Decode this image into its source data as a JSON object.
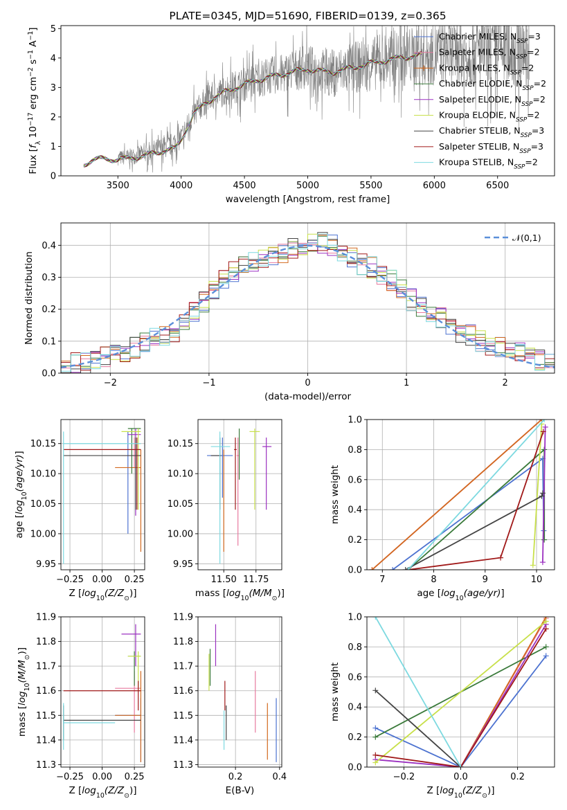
{
  "chart_data": [
    {
      "id": "spectrum",
      "type": "line",
      "title": "PLATE=0345, MJD=51690, FIBERID=0139, z=0.365",
      "xlabel": "wavelength [Angstrom, rest frame]",
      "ylabel": "Flux [$f_\\lambda 10^{-17}$ erg cm$^{-2}$ s$^{-1}$ A$^{-1}$]",
      "xlim": [
        3050,
        6950
      ],
      "ylim": [
        0,
        5.1
      ],
      "xticks": [
        3500,
        4000,
        4500,
        5000,
        5500,
        6000,
        6500
      ],
      "yticks": [
        0,
        1,
        2,
        3,
        4,
        5
      ],
      "observed_flux": {
        "color": "#808080",
        "x": [
          3500,
          3600,
          3700,
          3800,
          3900,
          4000,
          4100,
          4200,
          4300,
          4400,
          4500,
          4600,
          4700,
          4800,
          4900,
          5000,
          5100,
          5200,
          5300,
          5400,
          5500,
          5600,
          5700,
          5800,
          5900,
          6000,
          6100,
          6200,
          6300,
          6400,
          6500,
          6600,
          6750
        ],
        "y": [
          0.6,
          0.65,
          0.75,
          0.9,
          1.0,
          1.3,
          2.1,
          2.6,
          2.8,
          3.0,
          3.1,
          3.3,
          3.4,
          3.45,
          3.6,
          3.7,
          3.55,
          3.5,
          3.6,
          3.7,
          3.8,
          3.9,
          4.0,
          4.05,
          4.1,
          4.15,
          4.2,
          4.2,
          4.2,
          4.25,
          4.3,
          4.3,
          4.3
        ]
      },
      "model_flux": {
        "x": [
          3230,
          3300,
          3400,
          3500,
          3600,
          3700,
          3800,
          3900,
          3950,
          4000,
          4100,
          4200,
          4300,
          4400,
          4500,
          4600,
          4700,
          4800,
          4900,
          5000,
          5100,
          5200,
          5300,
          5400,
          5500,
          5600,
          5700,
          5800,
          5900
        ],
        "y": [
          0.38,
          0.55,
          0.58,
          0.55,
          0.6,
          0.68,
          0.78,
          0.9,
          0.9,
          1.22,
          2.1,
          2.5,
          2.75,
          2.95,
          3.1,
          3.25,
          3.35,
          3.45,
          3.55,
          3.62,
          3.55,
          3.52,
          3.62,
          3.72,
          3.82,
          3.9,
          3.98,
          4.05,
          4.1
        ]
      },
      "legend": [
        "Chabrier MILES, N$_{SSP}$=3",
        "Salpeter MILES, N$_{SSP}$=2",
        "Kroupa MILES, N$_{SSP}$=2",
        "Chabrier ELODIE, N$_{SSP}$=2",
        "Salpeter ELODIE, N$_{SSP}$=2",
        "Kroupa ELODIE, N$_{SSP}$=2",
        "Chabrier STELIB, N$_{SSP}$=3",
        "Salpeter STELIB, N$_{SSP}$=3",
        "Kroupa STELIB, N$_{SSP}$=2"
      ]
    },
    {
      "id": "residuals",
      "type": "line",
      "xlabel": "(data-model)/error",
      "ylabel": "Normed distribution",
      "xlim": [
        -2.5,
        2.5
      ],
      "ylim": [
        0,
        0.47
      ],
      "xticks": [
        -2,
        -1,
        0,
        1,
        2
      ],
      "yticks": [
        0.0,
        0.1,
        0.2,
        0.3,
        0.4
      ],
      "reference_curve": {
        "label": "$\\mathcal{N}(0,1)$",
        "color": "#5b8fd9"
      },
      "bin_edges": [
        -2.5,
        -2.4,
        -2.3,
        -2.2,
        -2.1,
        -2.0,
        -1.9,
        -1.8,
        -1.7,
        -1.6,
        -1.5,
        -1.4,
        -1.3,
        -1.2,
        -1.1,
        -1.0,
        -0.9,
        -0.8,
        -0.7,
        -0.6,
        -0.5,
        -0.4,
        -0.3,
        -0.2,
        -0.1,
        0.0,
        0.1,
        0.2,
        0.3,
        0.4,
        0.5,
        0.6,
        0.7,
        0.8,
        0.9,
        1.0,
        1.1,
        1.2,
        1.3,
        1.4,
        1.5,
        1.6,
        1.7,
        1.8,
        1.9,
        2.0,
        2.1,
        2.2,
        2.3,
        2.4,
        2.5
      ],
      "histogram_base": [
        0.03,
        0.03,
        0.03,
        0.04,
        0.05,
        0.06,
        0.07,
        0.08,
        0.1,
        0.11,
        0.12,
        0.13,
        0.16,
        0.19,
        0.22,
        0.26,
        0.3,
        0.32,
        0.34,
        0.35,
        0.36,
        0.37,
        0.38,
        0.39,
        0.4,
        0.41,
        0.41,
        0.4,
        0.38,
        0.36,
        0.34,
        0.33,
        0.31,
        0.29,
        0.26,
        0.23,
        0.21,
        0.19,
        0.17,
        0.15,
        0.13,
        0.12,
        0.1,
        0.09,
        0.08,
        0.07,
        0.06,
        0.05,
        0.04,
        0.035
      ]
    },
    {
      "id": "age_vs_Z",
      "type": "scatter",
      "xlabel": "Z [$\\log_{10}(Z/Z_\\odot)$]",
      "ylabel": "age  [$\\log_{10}(age/yr)$]",
      "xlim": [
        -0.32,
        0.33
      ],
      "ylim": [
        9.94,
        10.19
      ],
      "xticks": [
        -0.25,
        0.0,
        0.25
      ],
      "xticklabels": [
        "−0.25",
        "0.00",
        "0.25"
      ],
      "yticks": [
        9.95,
        10.0,
        10.05,
        10.1,
        10.15
      ],
      "points": [
        {
          "x": 0.2,
          "xlo": 0.2,
          "xhi": 0.2,
          "y": 10.14,
          "ylo": 10.0,
          "yhi": 10.17,
          "color": "#4c72d0"
        },
        {
          "x": 0.25,
          "xlo": 0.15,
          "xhi": 0.3,
          "y": 10.13,
          "ylo": 10.11,
          "yhi": 10.16,
          "color": "#e87a9f"
        },
        {
          "x": 0.3,
          "xlo": 0.1,
          "xhi": 0.3,
          "y": 10.11,
          "ylo": 9.97,
          "yhi": 10.14,
          "color": "#d2691e"
        },
        {
          "x": 0.23,
          "xlo": 0.2,
          "xhi": 0.3,
          "y": 10.175,
          "ylo": 10.1,
          "yhi": 10.175,
          "color": "#3a7a3a"
        },
        {
          "x": 0.26,
          "xlo": 0.2,
          "xhi": 0.3,
          "y": 10.165,
          "ylo": 10.03,
          "yhi": 10.175,
          "color": "#9b30c0"
        },
        {
          "x": 0.28,
          "xlo": 0.15,
          "xhi": 0.3,
          "y": 10.17,
          "ylo": 10.04,
          "yhi": 10.175,
          "color": "#c8e04a"
        },
        {
          "x": 0.26,
          "xlo": -0.3,
          "xhi": 0.3,
          "y": 10.13,
          "ylo": 10.04,
          "yhi": 10.16,
          "color": "#444444"
        },
        {
          "x": 0.27,
          "xlo": -0.3,
          "xhi": 0.3,
          "y": 10.14,
          "ylo": 10.04,
          "yhi": 10.16,
          "color": "#a01818"
        },
        {
          "x": -0.3,
          "xlo": -0.3,
          "xhi": 0.3,
          "y": 10.15,
          "ylo": 9.95,
          "yhi": 10.17,
          "color": "#7dd9e0"
        }
      ]
    },
    {
      "id": "age_vs_mass",
      "type": "scatter",
      "xlabel": "mass [$\\log_{10}(M/M_\\odot)$]",
      "xlim": [
        11.3,
        11.95
      ],
      "ylim": [
        9.94,
        10.19
      ],
      "xticks": [
        11.5,
        11.75
      ],
      "xticklabels": [
        "11.50",
        "11.75"
      ],
      "yticks": [
        9.95,
        10.0,
        10.05,
        10.1,
        10.15
      ],
      "points": [
        {
          "x": 11.49,
          "xlo": 11.37,
          "xhi": 11.57,
          "y": 10.13,
          "ylo": 10.06,
          "yhi": 10.16,
          "color": "#4c72d0"
        },
        {
          "x": 11.61,
          "xlo": 11.6,
          "xhi": 11.62,
          "y": 10.13,
          "ylo": 9.98,
          "yhi": 10.16,
          "color": "#e87a9f"
        },
        {
          "x": 11.5,
          "xlo": 11.5,
          "xhi": 11.5,
          "y": 10.11,
          "ylo": 9.97,
          "yhi": 10.14,
          "color": "#d2691e"
        },
        {
          "x": 11.62,
          "xlo": 11.62,
          "xhi": 11.62,
          "y": 10.175,
          "ylo": 10.09,
          "yhi": 10.175,
          "color": "#3a7a3a"
        },
        {
          "x": 11.83,
          "xlo": 11.8,
          "xhi": 11.87,
          "y": 10.145,
          "ylo": 10.04,
          "yhi": 10.16,
          "color": "#9b30c0"
        },
        {
          "x": 11.74,
          "xlo": 11.7,
          "xhi": 11.78,
          "y": 10.17,
          "ylo": 10.04,
          "yhi": 10.175,
          "color": "#c8e04a"
        },
        {
          "x": 11.47,
          "xlo": 11.4,
          "xhi": 11.48,
          "y": 10.13,
          "ylo": 10.04,
          "yhi": 10.16,
          "color": "#444444"
        },
        {
          "x": 11.59,
          "xlo": 11.58,
          "xhi": 11.6,
          "y": 10.14,
          "ylo": 10.04,
          "yhi": 10.16,
          "color": "#a01818"
        },
        {
          "x": 11.47,
          "xlo": 11.4,
          "xhi": 11.55,
          "y": 10.145,
          "ylo": 9.95,
          "yhi": 10.17,
          "color": "#7dd9e0"
        }
      ]
    },
    {
      "id": "weight_vs_age",
      "type": "line",
      "xlabel": "age  [$\\log_{10}(age/yr)$]",
      "ylabel": "mass weight",
      "xlim": [
        6.7,
        10.35
      ],
      "ylim": [
        0,
        1.0
      ],
      "xticks": [
        7,
        8,
        9,
        10
      ],
      "yticks": [
        0.0,
        0.2,
        0.4,
        0.6,
        0.8,
        1.0
      ],
      "series": [
        {
          "color": "#4c72d0",
          "x": [
            7.2,
            10.12,
            10.14
          ],
          "y": [
            0.0,
            0.74,
            0.26
          ]
        },
        {
          "color": "#e87a9f",
          "x": [
            6.8,
            10.1
          ],
          "y": [
            0.0,
            1.0
          ]
        },
        {
          "color": "#d2691e",
          "x": [
            6.8,
            10.1
          ],
          "y": [
            0.0,
            1.0
          ]
        },
        {
          "color": "#3a7a3a",
          "x": [
            7.5,
            10.15,
            10.15
          ],
          "y": [
            0.0,
            0.8,
            0.2
          ]
        },
        {
          "color": "#9b30c0",
          "x": [
            10.12,
            10.17
          ],
          "y": [
            0.05,
            0.95
          ]
        },
        {
          "color": "#c8e04a",
          "x": [
            9.93,
            10.1
          ],
          "y": [
            0.03,
            0.97
          ]
        },
        {
          "color": "#444444",
          "x": [
            7.45,
            10.1,
            10.12
          ],
          "y": [
            0.0,
            0.49,
            0.51
          ]
        },
        {
          "color": "#a01818",
          "x": [
            7.5,
            9.3,
            10.13
          ],
          "y": [
            0.0,
            0.08,
            0.92
          ]
        },
        {
          "color": "#7dd9e0",
          "x": [
            7.5,
            10.15
          ],
          "y": [
            0.0,
            1.0
          ]
        }
      ]
    },
    {
      "id": "mass_vs_Z",
      "type": "scatter",
      "xlabel": "Z [$\\log_{10}(Z/Z_\\odot)$]",
      "ylabel": "mass [$\\log_{10}(M/M_\\odot)$]",
      "xlim": [
        -0.32,
        0.33
      ],
      "ylim": [
        11.29,
        11.9
      ],
      "xticks": [
        -0.25,
        0.0,
        0.25
      ],
      "xticklabels": [
        "−0.25",
        "0.00",
        "0.25"
      ],
      "yticks": [
        11.3,
        11.4,
        11.5,
        11.6,
        11.7,
        11.8,
        11.9
      ],
      "points": [
        {
          "x": 0.3,
          "xlo": 0.1,
          "xhi": 0.3,
          "y": 11.5,
          "ylo": 11.31,
          "yhi": 11.57,
          "color": "#4c72d0"
        },
        {
          "x": 0.25,
          "xlo": 0.1,
          "xhi": 0.3,
          "y": 11.61,
          "ylo": 11.43,
          "yhi": 11.68,
          "color": "#e87a9f"
        },
        {
          "x": 0.3,
          "xlo": 0.1,
          "xhi": 0.3,
          "y": 11.5,
          "ylo": 11.31,
          "yhi": 11.68,
          "color": "#d2691e"
        },
        {
          "x": 0.25,
          "xlo": 0.2,
          "xhi": 0.3,
          "y": 11.74,
          "ylo": 11.62,
          "yhi": 11.76,
          "color": "#3a7a3a"
        },
        {
          "x": 0.26,
          "xlo": 0.15,
          "xhi": 0.3,
          "y": 11.83,
          "ylo": 11.7,
          "yhi": 11.87,
          "color": "#9b30c0"
        },
        {
          "x": 0.28,
          "xlo": 0.2,
          "xhi": 0.3,
          "y": 11.74,
          "ylo": 11.6,
          "yhi": 11.76,
          "color": "#c8e04a"
        },
        {
          "x": -0.3,
          "xlo": -0.3,
          "xhi": 0.3,
          "y": 11.48,
          "ylo": 11.4,
          "yhi": 11.54,
          "color": "#444444"
        },
        {
          "x": 0.28,
          "xlo": -0.3,
          "xhi": 0.3,
          "y": 11.6,
          "ylo": 11.52,
          "yhi": 11.64,
          "color": "#a01818"
        },
        {
          "x": -0.3,
          "xlo": -0.3,
          "xhi": 0.1,
          "y": 11.47,
          "ylo": 11.36,
          "yhi": 11.55,
          "color": "#7dd9e0"
        }
      ]
    },
    {
      "id": "mass_vs_ebv",
      "type": "scatter",
      "xlabel": "E(B-V)",
      "xlim": [
        0.03,
        0.41
      ],
      "ylim": [
        11.29,
        11.9
      ],
      "xticks": [
        0.2,
        0.4
      ],
      "xticklabels": [
        "0.2",
        "0.4"
      ],
      "yticks": [
        11.3,
        11.4,
        11.5,
        11.6,
        11.7,
        11.8,
        11.9
      ],
      "points": [
        {
          "x": 0.385,
          "y": 11.5,
          "ylo": 11.31,
          "yhi": 11.57,
          "color": "#4c72d0"
        },
        {
          "x": 0.29,
          "y": 11.6,
          "ylo": 11.43,
          "yhi": 11.68,
          "color": "#e87a9f"
        },
        {
          "x": 0.345,
          "y": 11.5,
          "ylo": 11.32,
          "yhi": 11.55,
          "color": "#d2691e"
        },
        {
          "x": 0.085,
          "y": 11.7,
          "ylo": 11.62,
          "yhi": 11.77,
          "color": "#3a7a3a"
        },
        {
          "x": 0.11,
          "y": 11.8,
          "ylo": 11.7,
          "yhi": 11.87,
          "color": "#9b30c0"
        },
        {
          "x": 0.08,
          "y": 11.7,
          "ylo": 11.6,
          "yhi": 11.75,
          "color": "#c8e04a"
        },
        {
          "x": 0.158,
          "y": 11.47,
          "ylo": 11.4,
          "yhi": 11.54,
          "color": "#444444"
        },
        {
          "x": 0.152,
          "y": 11.58,
          "ylo": 11.52,
          "yhi": 11.64,
          "color": "#a01818"
        },
        {
          "x": 0.148,
          "y": 11.45,
          "ylo": 11.36,
          "yhi": 11.52,
          "color": "#7dd9e0"
        }
      ]
    },
    {
      "id": "weight_vs_Z",
      "type": "line",
      "xlabel": "Z [$\\log_{10}(Z/Z_\\odot)$]",
      "ylabel": "mass weight",
      "xlim": [
        -0.33,
        0.33
      ],
      "ylim": [
        0,
        1.0
      ],
      "xticks": [
        -0.2,
        0.0,
        0.2
      ],
      "xticklabels": [
        "−0.2",
        "0.0",
        "0.2"
      ],
      "yticks": [
        0.0,
        0.2,
        0.4,
        0.6,
        0.8,
        1.0
      ],
      "series": [
        {
          "color": "#4c72d0",
          "x": [
            -0.3,
            0.0,
            0.3
          ],
          "y": [
            0.26,
            0.0,
            0.74
          ]
        },
        {
          "color": "#e87a9f",
          "x": [
            0.0,
            0.3
          ],
          "y": [
            0.0,
            0.99
          ]
        },
        {
          "color": "#d2691e",
          "x": [
            0.0,
            0.3
          ],
          "y": [
            0.0,
            1.0
          ]
        },
        {
          "color": "#3a7a3a",
          "x": [
            -0.3,
            0.3
          ],
          "y": [
            0.2,
            0.8
          ]
        },
        {
          "color": "#9b30c0",
          "x": [
            -0.3,
            0.0,
            0.3
          ],
          "y": [
            0.05,
            0.0,
            0.95
          ]
        },
        {
          "color": "#c8e04a",
          "x": [
            -0.3,
            0.3
          ],
          "y": [
            0.03,
            0.97
          ]
        },
        {
          "color": "#444444",
          "x": [
            -0.3,
            0.0
          ],
          "y": [
            0.51,
            0.0
          ]
        },
        {
          "color": "#a01818",
          "x": [
            -0.3,
            0.0,
            0.3
          ],
          "y": [
            0.08,
            0.0,
            0.92
          ]
        },
        {
          "color": "#7dd9e0",
          "x": [
            -0.3,
            0.0
          ],
          "y": [
            1.0,
            0.0
          ]
        }
      ]
    }
  ]
}
